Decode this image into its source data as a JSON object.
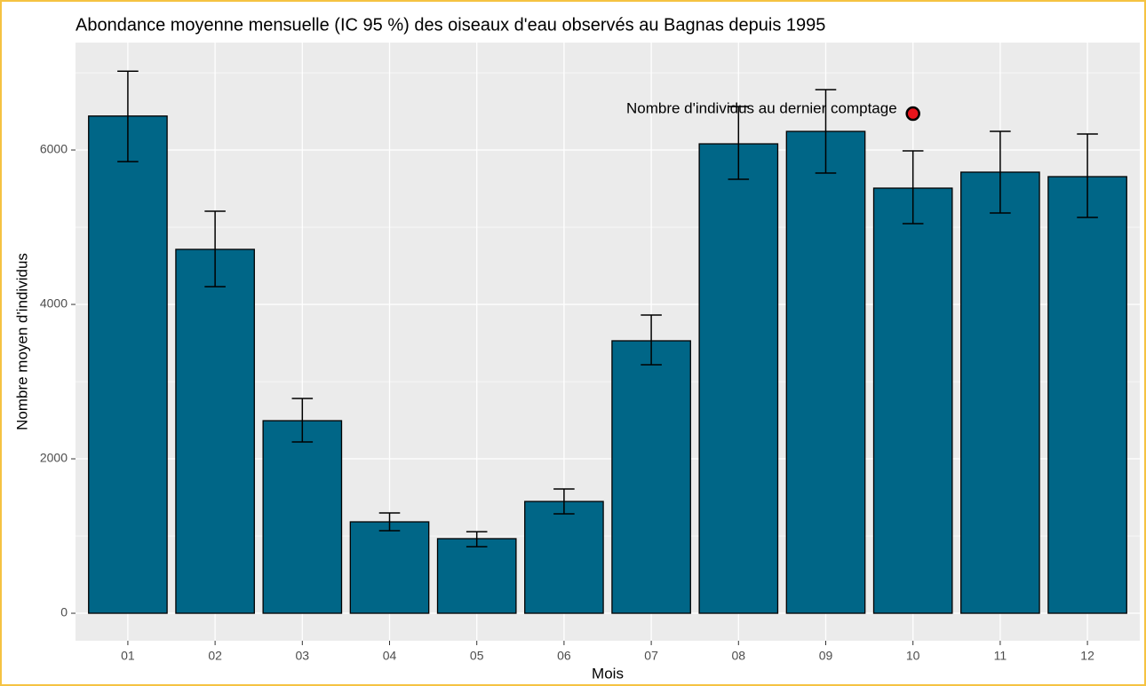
{
  "chart_data": {
    "type": "bar",
    "title": "Abondance moyenne mensuelle (IC 95 %) des oiseaux d'eau observés au Bagnas depuis 1995",
    "x_label": "Mois",
    "y_label": "Nombre moyen d'individus",
    "categories": [
      "01",
      "02",
      "03",
      "04",
      "05",
      "06",
      "07",
      "08",
      "09",
      "10",
      "11",
      "12"
    ],
    "values": [
      6440,
      4713,
      2494,
      1184,
      966,
      1448,
      3529,
      6080,
      6241,
      5506,
      5713,
      5655
    ],
    "ci_low": [
      5850,
      4230,
      2218,
      1069,
      862,
      1287,
      3218,
      5621,
      5701,
      5046,
      5184,
      5126
    ],
    "ci_high": [
      7020,
      5207,
      2782,
      1299,
      1057,
      1609,
      3862,
      6563,
      6782,
      5989,
      6241,
      6207
    ],
    "color": "#006687",
    "ylim": [
      -356,
      7391
    ],
    "yticks": [
      0,
      2000,
      4000,
      6000
    ],
    "minor_yticks": [
      1000,
      3000,
      5000,
      7000
    ],
    "grid": true,
    "annotation": "Nombre d'individus au dernier comptage",
    "last_count_category": "10",
    "last_count": 6471,
    "last_count_color": "#e8141b"
  }
}
